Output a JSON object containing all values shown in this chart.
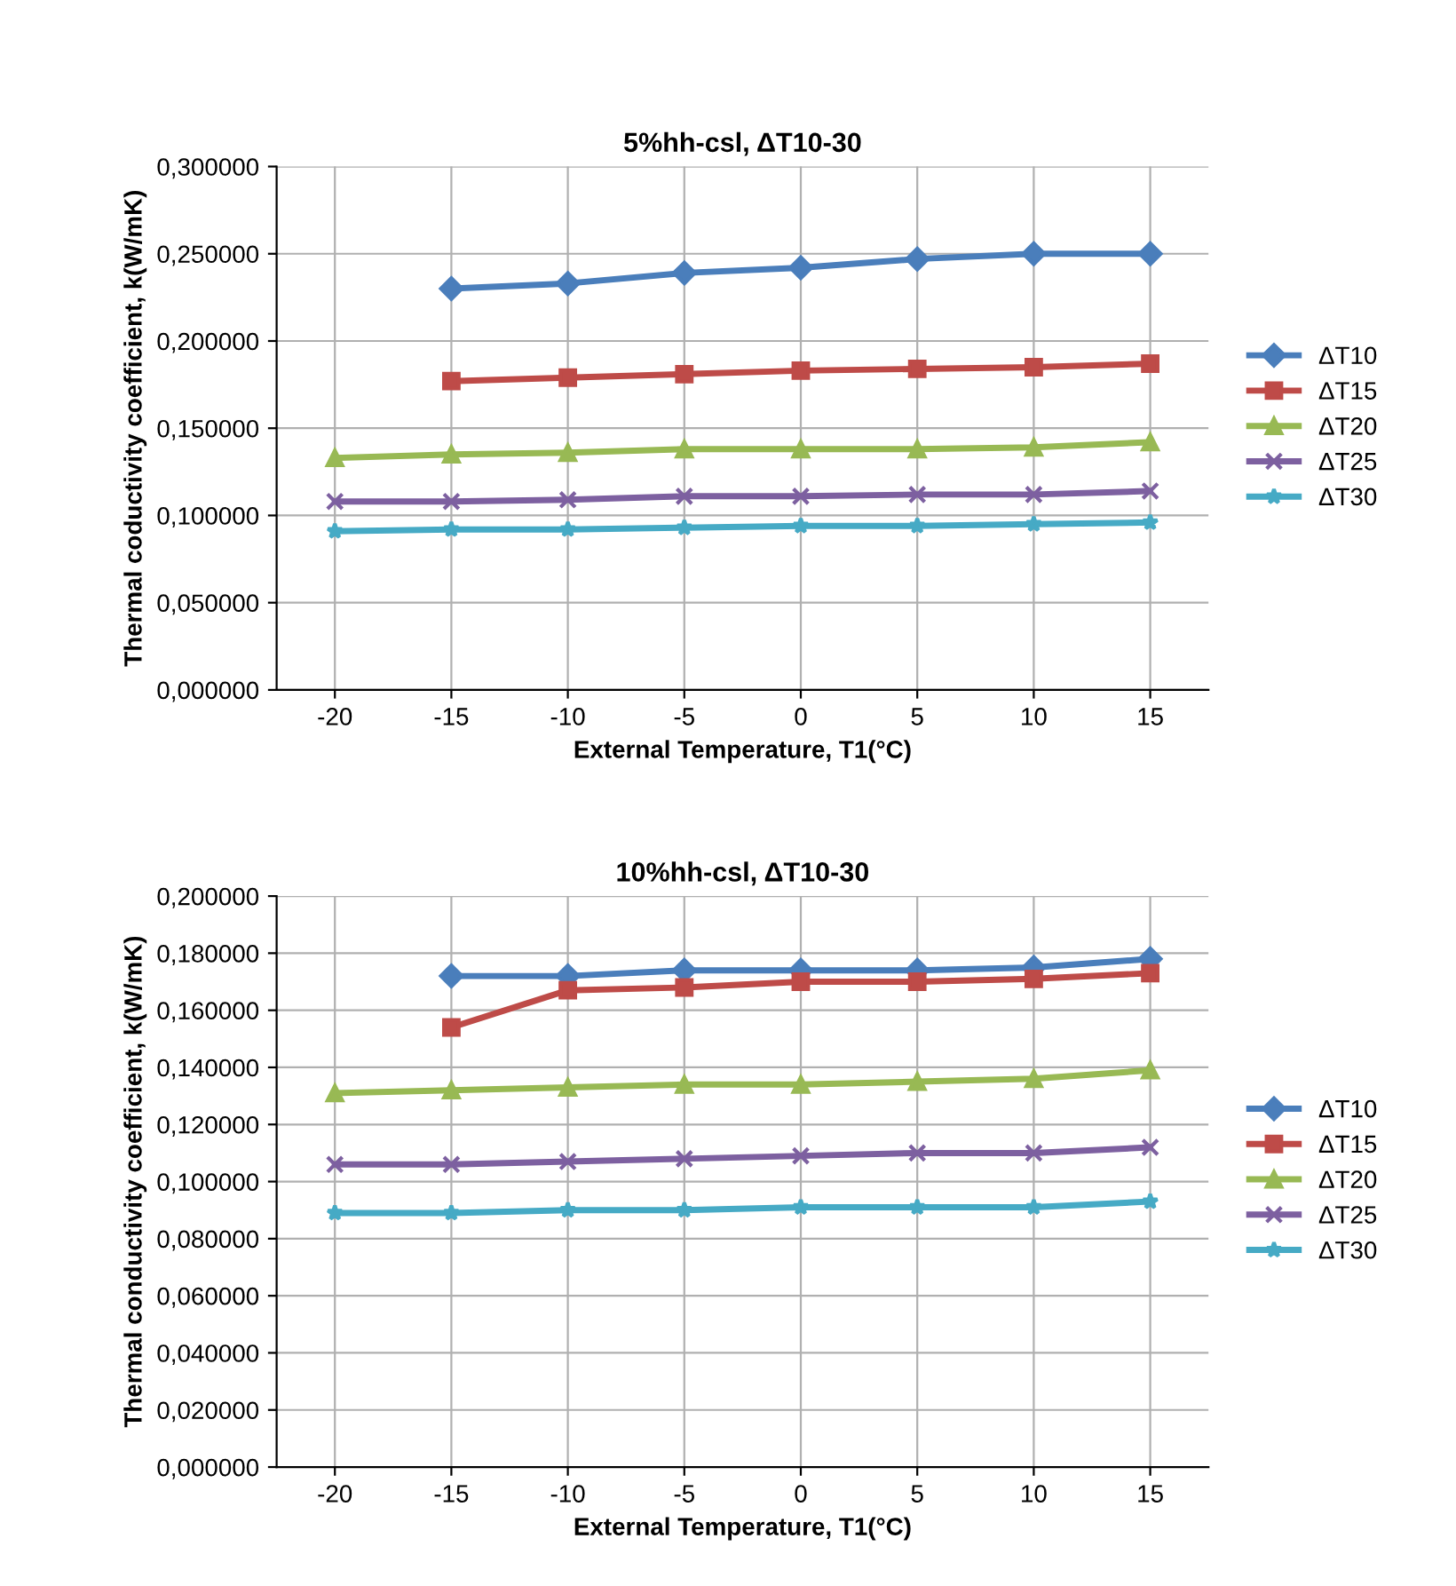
{
  "chart_data": [
    {
      "type": "line",
      "title": "5%hh-csl, ΔT10-30",
      "xlabel": "External Temperature, T1(°C)",
      "ylabel": "Thermal coductivity coefficient, k(W/mK)",
      "categories": [
        "-20",
        "-15",
        "-10",
        "-5",
        "0",
        "5",
        "10",
        "15"
      ],
      "ylim": [
        0,
        0.3
      ],
      "yticks": [
        {
          "value": 0,
          "label": "0,000000"
        },
        {
          "value": 0.05,
          "label": "0,050000"
        },
        {
          "value": 0.1,
          "label": "0,100000"
        },
        {
          "value": 0.15,
          "label": "0,150000"
        },
        {
          "value": 0.2,
          "label": "0,200000"
        },
        {
          "value": 0.25,
          "label": "0,250000"
        },
        {
          "value": 0.3,
          "label": "0,300000"
        }
      ],
      "grid": true,
      "legend": "right",
      "line_style": "solid",
      "series": [
        {
          "name": "ΔT10",
          "color": "#4a7ebb",
          "marker": "diamond",
          "values": [
            null,
            0.23,
            0.233,
            0.239,
            0.242,
            0.247,
            0.25,
            0.25
          ]
        },
        {
          "name": "ΔT15",
          "color": "#be4b48",
          "marker": "square",
          "values": [
            null,
            0.177,
            0.179,
            0.181,
            0.183,
            0.184,
            0.185,
            0.187
          ]
        },
        {
          "name": "ΔT20",
          "color": "#98b954",
          "marker": "triangle",
          "values": [
            0.133,
            0.135,
            0.136,
            0.138,
            0.138,
            0.138,
            0.139,
            0.142
          ]
        },
        {
          "name": "ΔT25",
          "color": "#7d60a0",
          "marker": "cross",
          "values": [
            0.108,
            0.108,
            0.109,
            0.111,
            0.111,
            0.112,
            0.112,
            0.114
          ]
        },
        {
          "name": "ΔT30",
          "color": "#46aac5",
          "marker": "star",
          "values": [
            0.091,
            0.092,
            0.092,
            0.093,
            0.094,
            0.094,
            0.095,
            0.096
          ]
        }
      ]
    },
    {
      "type": "line",
      "title": "10%hh-csl, ΔT10-30",
      "xlabel": "External Temperature, T1(°C)",
      "ylabel": "Thermal conductivity coefficient, k(W/mK)",
      "categories": [
        "-20",
        "-15",
        "-10",
        "-5",
        "0",
        "5",
        "10",
        "15"
      ],
      "ylim": [
        0,
        0.2
      ],
      "yticks": [
        {
          "value": 0,
          "label": "0,000000"
        },
        {
          "value": 0.02,
          "label": "0,020000"
        },
        {
          "value": 0.04,
          "label": "0,040000"
        },
        {
          "value": 0.06,
          "label": "0,060000"
        },
        {
          "value": 0.08,
          "label": "0,080000"
        },
        {
          "value": 0.1,
          "label": "0,100000"
        },
        {
          "value": 0.12,
          "label": "0,120000"
        },
        {
          "value": 0.14,
          "label": "0,140000"
        },
        {
          "value": 0.16,
          "label": "0,160000"
        },
        {
          "value": 0.18,
          "label": "0,180000"
        },
        {
          "value": 0.2,
          "label": "0,200000"
        }
      ],
      "grid": true,
      "legend": "right",
      "line_style": "solid",
      "series": [
        {
          "name": "ΔT10",
          "color": "#4a7ebb",
          "marker": "diamond",
          "values": [
            null,
            0.172,
            0.172,
            0.174,
            0.174,
            0.174,
            0.175,
            0.178
          ]
        },
        {
          "name": "ΔT15",
          "color": "#be4b48",
          "marker": "square",
          "values": [
            null,
            0.154,
            0.167,
            0.168,
            0.17,
            0.17,
            0.171,
            0.173
          ]
        },
        {
          "name": "ΔT20",
          "color": "#98b954",
          "marker": "triangle",
          "values": [
            0.131,
            0.132,
            0.133,
            0.134,
            0.134,
            0.135,
            0.136,
            0.139
          ]
        },
        {
          "name": "ΔT25",
          "color": "#7d60a0",
          "marker": "cross",
          "values": [
            0.106,
            0.106,
            0.107,
            0.108,
            0.109,
            0.11,
            0.11,
            0.112
          ]
        },
        {
          "name": "ΔT30",
          "color": "#46aac5",
          "marker": "star",
          "values": [
            0.089,
            0.089,
            0.09,
            0.09,
            0.091,
            0.091,
            0.091,
            0.093
          ]
        }
      ]
    }
  ]
}
